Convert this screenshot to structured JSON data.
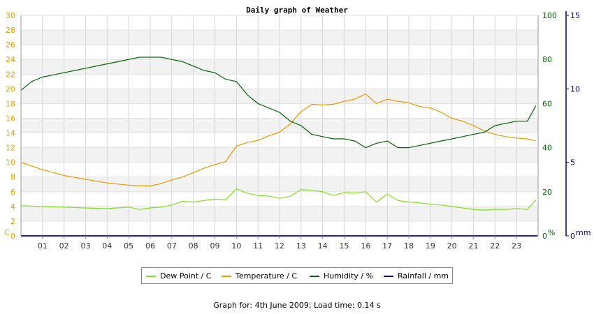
{
  "chart_data": {
    "type": "line",
    "title": "Daily graph of Weather",
    "x_tick_labels": [
      "01",
      "02",
      "03",
      "04",
      "05",
      "06",
      "07",
      "08",
      "09",
      "10",
      "11",
      "12",
      "13",
      "14",
      "15",
      "16",
      "17",
      "18",
      "19",
      "20",
      "21",
      "22",
      "23"
    ],
    "x_range_hours": [
      0,
      24
    ],
    "grid": true,
    "legend_position": "bottom",
    "axes": {
      "left": {
        "unit_label": "C",
        "range": [
          0,
          30
        ],
        "ticks": [
          0,
          2,
          4,
          6,
          8,
          10,
          12,
          14,
          16,
          18,
          20,
          22,
          24,
          26,
          28,
          30
        ],
        "color": "#e8a000"
      },
      "right1": {
        "unit_label": "%",
        "range": [
          0,
          100
        ],
        "ticks": [
          0,
          20,
          40,
          60,
          80,
          100
        ],
        "color": "#006400"
      },
      "right2": {
        "unit_label": "mm",
        "range": [
          0,
          15
        ],
        "ticks": [
          0,
          5,
          10,
          15
        ],
        "color": "#00008b"
      }
    },
    "series": [
      {
        "name": "Dew Point / C",
        "color": "#80e020",
        "axis": "left",
        "x": [
          0,
          1,
          2,
          3,
          4,
          5,
          5.5,
          6,
          6.5,
          7,
          7.5,
          8,
          8.5,
          9,
          9.5,
          10,
          10.5,
          11,
          11.5,
          12,
          12.5,
          13,
          13.5,
          14,
          14.5,
          15,
          15.5,
          16,
          16.5,
          17,
          17.5,
          18,
          18.5,
          19,
          19.5,
          20,
          20.5,
          21,
          21.5,
          22,
          22.5,
          23,
          23.5,
          23.9
        ],
        "values": [
          4.1,
          4.0,
          3.9,
          3.8,
          3.7,
          3.9,
          3.6,
          3.8,
          3.9,
          4.2,
          4.7,
          4.6,
          4.8,
          5.0,
          4.9,
          6.4,
          5.8,
          5.5,
          5.4,
          5.1,
          5.4,
          6.3,
          6.2,
          6.0,
          5.5,
          5.9,
          5.8,
          6.0,
          4.6,
          5.7,
          4.8,
          4.6,
          4.5,
          4.3,
          4.2,
          4.0,
          3.8,
          3.6,
          3.5,
          3.6,
          3.6,
          3.7,
          3.6,
          4.9
        ]
      },
      {
        "name": "Temperature / C",
        "color": "#e89a00",
        "axis": "left",
        "x": [
          0,
          1,
          2,
          3,
          4,
          5,
          5.5,
          6,
          6.5,
          7,
          7.5,
          8,
          8.5,
          9,
          9.5,
          10,
          10.5,
          11,
          11.5,
          12,
          12.5,
          13,
          13.5,
          14,
          14.5,
          15,
          15.5,
          16,
          16.5,
          17,
          17.5,
          18,
          18.5,
          19,
          19.5,
          20,
          20.5,
          21,
          21.5,
          22,
          22.5,
          23,
          23.5,
          23.9
        ],
        "values": [
          10.0,
          9.0,
          8.2,
          7.7,
          7.2,
          6.9,
          6.8,
          6.8,
          7.1,
          7.6,
          8.0,
          8.6,
          9.2,
          9.7,
          10.1,
          12.2,
          12.7,
          13.0,
          13.6,
          14.1,
          15.2,
          16.9,
          17.9,
          17.8,
          17.9,
          18.3,
          18.6,
          19.3,
          18.0,
          18.6,
          18.3,
          18.1,
          17.6,
          17.4,
          16.8,
          16.0,
          15.6,
          15.0,
          14.3,
          13.8,
          13.5,
          13.3,
          13.2,
          12.9
        ]
      },
      {
        "name": "Humidity / %",
        "color": "#006400",
        "axis": "right1",
        "x": [
          0,
          0.5,
          1,
          1.5,
          2,
          2.5,
          3,
          3.5,
          4,
          4.5,
          5,
          5.5,
          6,
          6.5,
          7,
          7.5,
          8,
          8.5,
          9,
          9.5,
          10,
          10.5,
          11,
          11.5,
          12,
          12.5,
          13,
          13.5,
          14,
          14.5,
          15,
          15.5,
          16,
          16.5,
          17,
          17.5,
          18,
          18.5,
          19,
          19.5,
          20,
          20.5,
          21,
          21.5,
          22,
          22.5,
          23,
          23.5,
          23.9
        ],
        "values": [
          66,
          70,
          72,
          73,
          74,
          75,
          76,
          77,
          78,
          79,
          80,
          81,
          81,
          81,
          80,
          79,
          77,
          75,
          74,
          71,
          70,
          64,
          60,
          58,
          56,
          52,
          50,
          46,
          45,
          44,
          44,
          43,
          40,
          42,
          43,
          40,
          40,
          41,
          42,
          43,
          44,
          45,
          46,
          47,
          50,
          51,
          52,
          52,
          59
        ]
      },
      {
        "name": "Rainfall / mm",
        "color": "#0000aa",
        "axis": "right2",
        "x": [
          0,
          23.9
        ],
        "values": [
          0,
          0
        ]
      }
    ]
  },
  "footer_text": "Graph for: 4th June 2009; Load time: 0.14 s"
}
